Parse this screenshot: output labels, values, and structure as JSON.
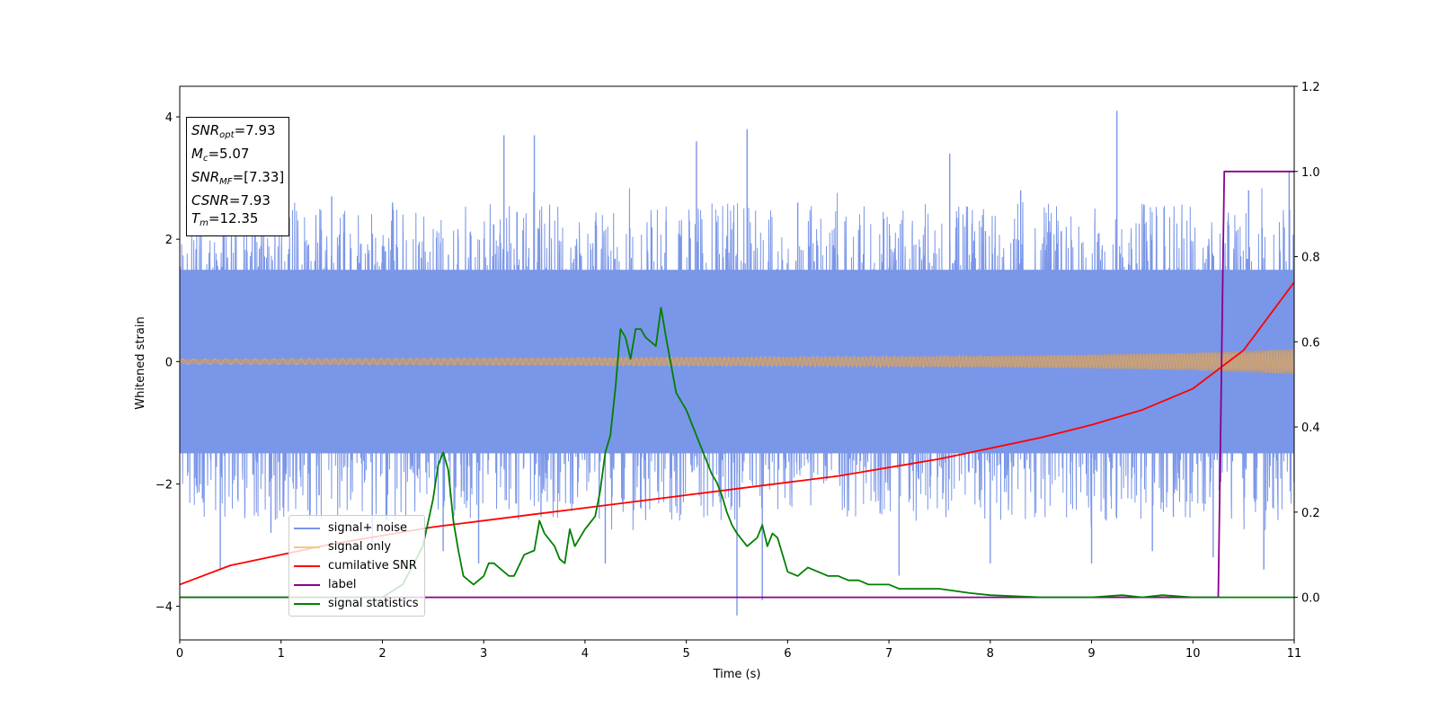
{
  "chart_data": {
    "type": "line",
    "xlabel": "Time (s)",
    "ylabel": "Whitened strain",
    "xlim": [
      0,
      11
    ],
    "ylim_left": [
      -4.55,
      4.5
    ],
    "ylim_right": [
      -0.1,
      1.2
    ],
    "x_ticks": [
      "0",
      "1",
      "2",
      "3",
      "4",
      "5",
      "6",
      "7",
      "8",
      "9",
      "10",
      "11"
    ],
    "y_left_ticks": [
      {
        "v": 4,
        "label": "4"
      },
      {
        "v": 2,
        "label": "2"
      },
      {
        "v": 0,
        "label": "0"
      },
      {
        "v": -2,
        "label": "−2"
      },
      {
        "v": -4,
        "label": "−4"
      }
    ],
    "y_right_ticks": [
      "0.0",
      "0.2",
      "0.4",
      "0.6",
      "0.8",
      "1.0",
      "1.2"
    ],
    "grid": false,
    "legend_position": "lower-left",
    "annotation": {
      "snr_opt": {
        "base": "SNR",
        "sub": "opt",
        "value": "=7.93"
      },
      "mc": {
        "base": "M",
        "sub": "c",
        "value": "=5.07"
      },
      "snr_mf": {
        "base": "SNR",
        "sub": "MF",
        "value": "=[7.33]"
      },
      "csnr": {
        "base": "CSNR",
        "value": "=7.93"
      },
      "tm": {
        "base": "T",
        "sub": "m",
        "value": "=12.35"
      }
    },
    "series": [
      {
        "name": "signal+ noise",
        "color": "#7a96e8",
        "axis": "left",
        "description": "noise band approx ±1.5 with spikes to about ±4",
        "envelope": {
          "x": [
            0,
            11
          ],
          "ymin": [
            -1.5,
            -1.5
          ],
          "ymax": [
            1.5,
            1.5
          ]
        },
        "spikes": [
          [
            0.4,
            -3.4
          ],
          [
            0.9,
            -2.8
          ],
          [
            1.5,
            2.7
          ],
          [
            1.9,
            -3.0
          ],
          [
            2.1,
            2.6
          ],
          [
            2.6,
            -3.1
          ],
          [
            2.95,
            -3.3
          ],
          [
            3.2,
            3.7
          ],
          [
            3.5,
            3.7
          ],
          [
            4.2,
            -3.3
          ],
          [
            4.8,
            2.3
          ],
          [
            5.1,
            3.6
          ],
          [
            5.5,
            -4.15
          ],
          [
            5.6,
            3.8
          ],
          [
            5.75,
            -3.9
          ],
          [
            6.1,
            2.6
          ],
          [
            7.1,
            -3.5
          ],
          [
            7.6,
            3.4
          ],
          [
            8.0,
            -3.3
          ],
          [
            8.3,
            2.8
          ],
          [
            9.0,
            -3.3
          ],
          [
            9.25,
            4.1
          ],
          [
            9.6,
            -3.1
          ],
          [
            10.2,
            -3.2
          ],
          [
            10.55,
            2.8
          ],
          [
            10.7,
            -3.4
          ],
          [
            10.95,
            3.1
          ]
        ]
      },
      {
        "name": "signal only",
        "color": "#f5c87a",
        "axis": "left",
        "description": "chirp with amplitude growing over time",
        "amplitude": {
          "x": [
            0,
            2,
            4,
            6,
            8,
            9,
            10,
            10.5,
            11
          ],
          "y": [
            0.04,
            0.05,
            0.06,
            0.07,
            0.09,
            0.11,
            0.14,
            0.17,
            0.2
          ]
        }
      },
      {
        "name": "cumilative SNR",
        "color": "#ff0000",
        "axis": "right",
        "x": [
          0,
          0.5,
          1,
          1.5,
          2,
          2.5,
          3,
          3.5,
          4,
          4.5,
          5,
          5.5,
          6,
          6.5,
          7,
          7.5,
          8,
          8.5,
          9,
          9.5,
          10,
          10.5,
          11
        ],
        "y": [
          0.03,
          0.075,
          0.1,
          0.125,
          0.145,
          0.165,
          0.18,
          0.195,
          0.21,
          0.225,
          0.24,
          0.255,
          0.27,
          0.285,
          0.305,
          0.325,
          0.35,
          0.375,
          0.405,
          0.44,
          0.49,
          0.58,
          0.74
        ]
      },
      {
        "name": "label",
        "color": "#8b008b",
        "axis": "right",
        "x": [
          0,
          10.25,
          10.31,
          11
        ],
        "y": [
          0.0,
          0.0,
          1.0,
          1.0
        ]
      },
      {
        "name": "signal statistics",
        "color": "#008000",
        "axis": "right",
        "x": [
          0,
          1,
          2,
          2.2,
          2.4,
          2.5,
          2.55,
          2.6,
          2.65,
          2.7,
          2.75,
          2.8,
          2.9,
          3.0,
          3.05,
          3.1,
          3.2,
          3.25,
          3.3,
          3.4,
          3.5,
          3.55,
          3.6,
          3.7,
          3.75,
          3.8,
          3.85,
          3.9,
          4.0,
          4.1,
          4.15,
          4.2,
          4.25,
          4.3,
          4.35,
          4.4,
          4.45,
          4.5,
          4.55,
          4.6,
          4.65,
          4.7,
          4.75,
          4.8,
          4.9,
          5.0,
          5.1,
          5.2,
          5.25,
          5.3,
          5.35,
          5.4,
          5.45,
          5.5,
          5.6,
          5.7,
          5.75,
          5.8,
          5.85,
          5.9,
          6.0,
          6.1,
          6.2,
          6.3,
          6.4,
          6.5,
          6.6,
          6.7,
          6.8,
          6.9,
          7.0,
          7.1,
          7.3,
          7.5,
          7.8,
          8.0,
          8.5,
          9.0,
          9.3,
          9.5,
          9.7,
          10.0,
          10.2,
          10.3,
          10.5,
          10.7,
          11
        ],
        "y": [
          0.0,
          0.0,
          0.0,
          0.03,
          0.12,
          0.23,
          0.31,
          0.34,
          0.3,
          0.18,
          0.11,
          0.05,
          0.03,
          0.05,
          0.08,
          0.08,
          0.06,
          0.05,
          0.05,
          0.1,
          0.11,
          0.18,
          0.15,
          0.12,
          0.09,
          0.08,
          0.16,
          0.12,
          0.16,
          0.19,
          0.25,
          0.34,
          0.38,
          0.49,
          0.63,
          0.61,
          0.56,
          0.63,
          0.63,
          0.61,
          0.6,
          0.59,
          0.68,
          0.61,
          0.48,
          0.44,
          0.38,
          0.32,
          0.29,
          0.27,
          0.24,
          0.2,
          0.17,
          0.15,
          0.12,
          0.14,
          0.17,
          0.12,
          0.15,
          0.14,
          0.06,
          0.05,
          0.07,
          0.06,
          0.05,
          0.05,
          0.04,
          0.04,
          0.03,
          0.03,
          0.03,
          0.02,
          0.02,
          0.02,
          0.01,
          0.005,
          0.0,
          0.0,
          0.005,
          0.0,
          0.005,
          0.0,
          0.0,
          0.0,
          0.0,
          0.0,
          0.0
        ]
      }
    ]
  }
}
